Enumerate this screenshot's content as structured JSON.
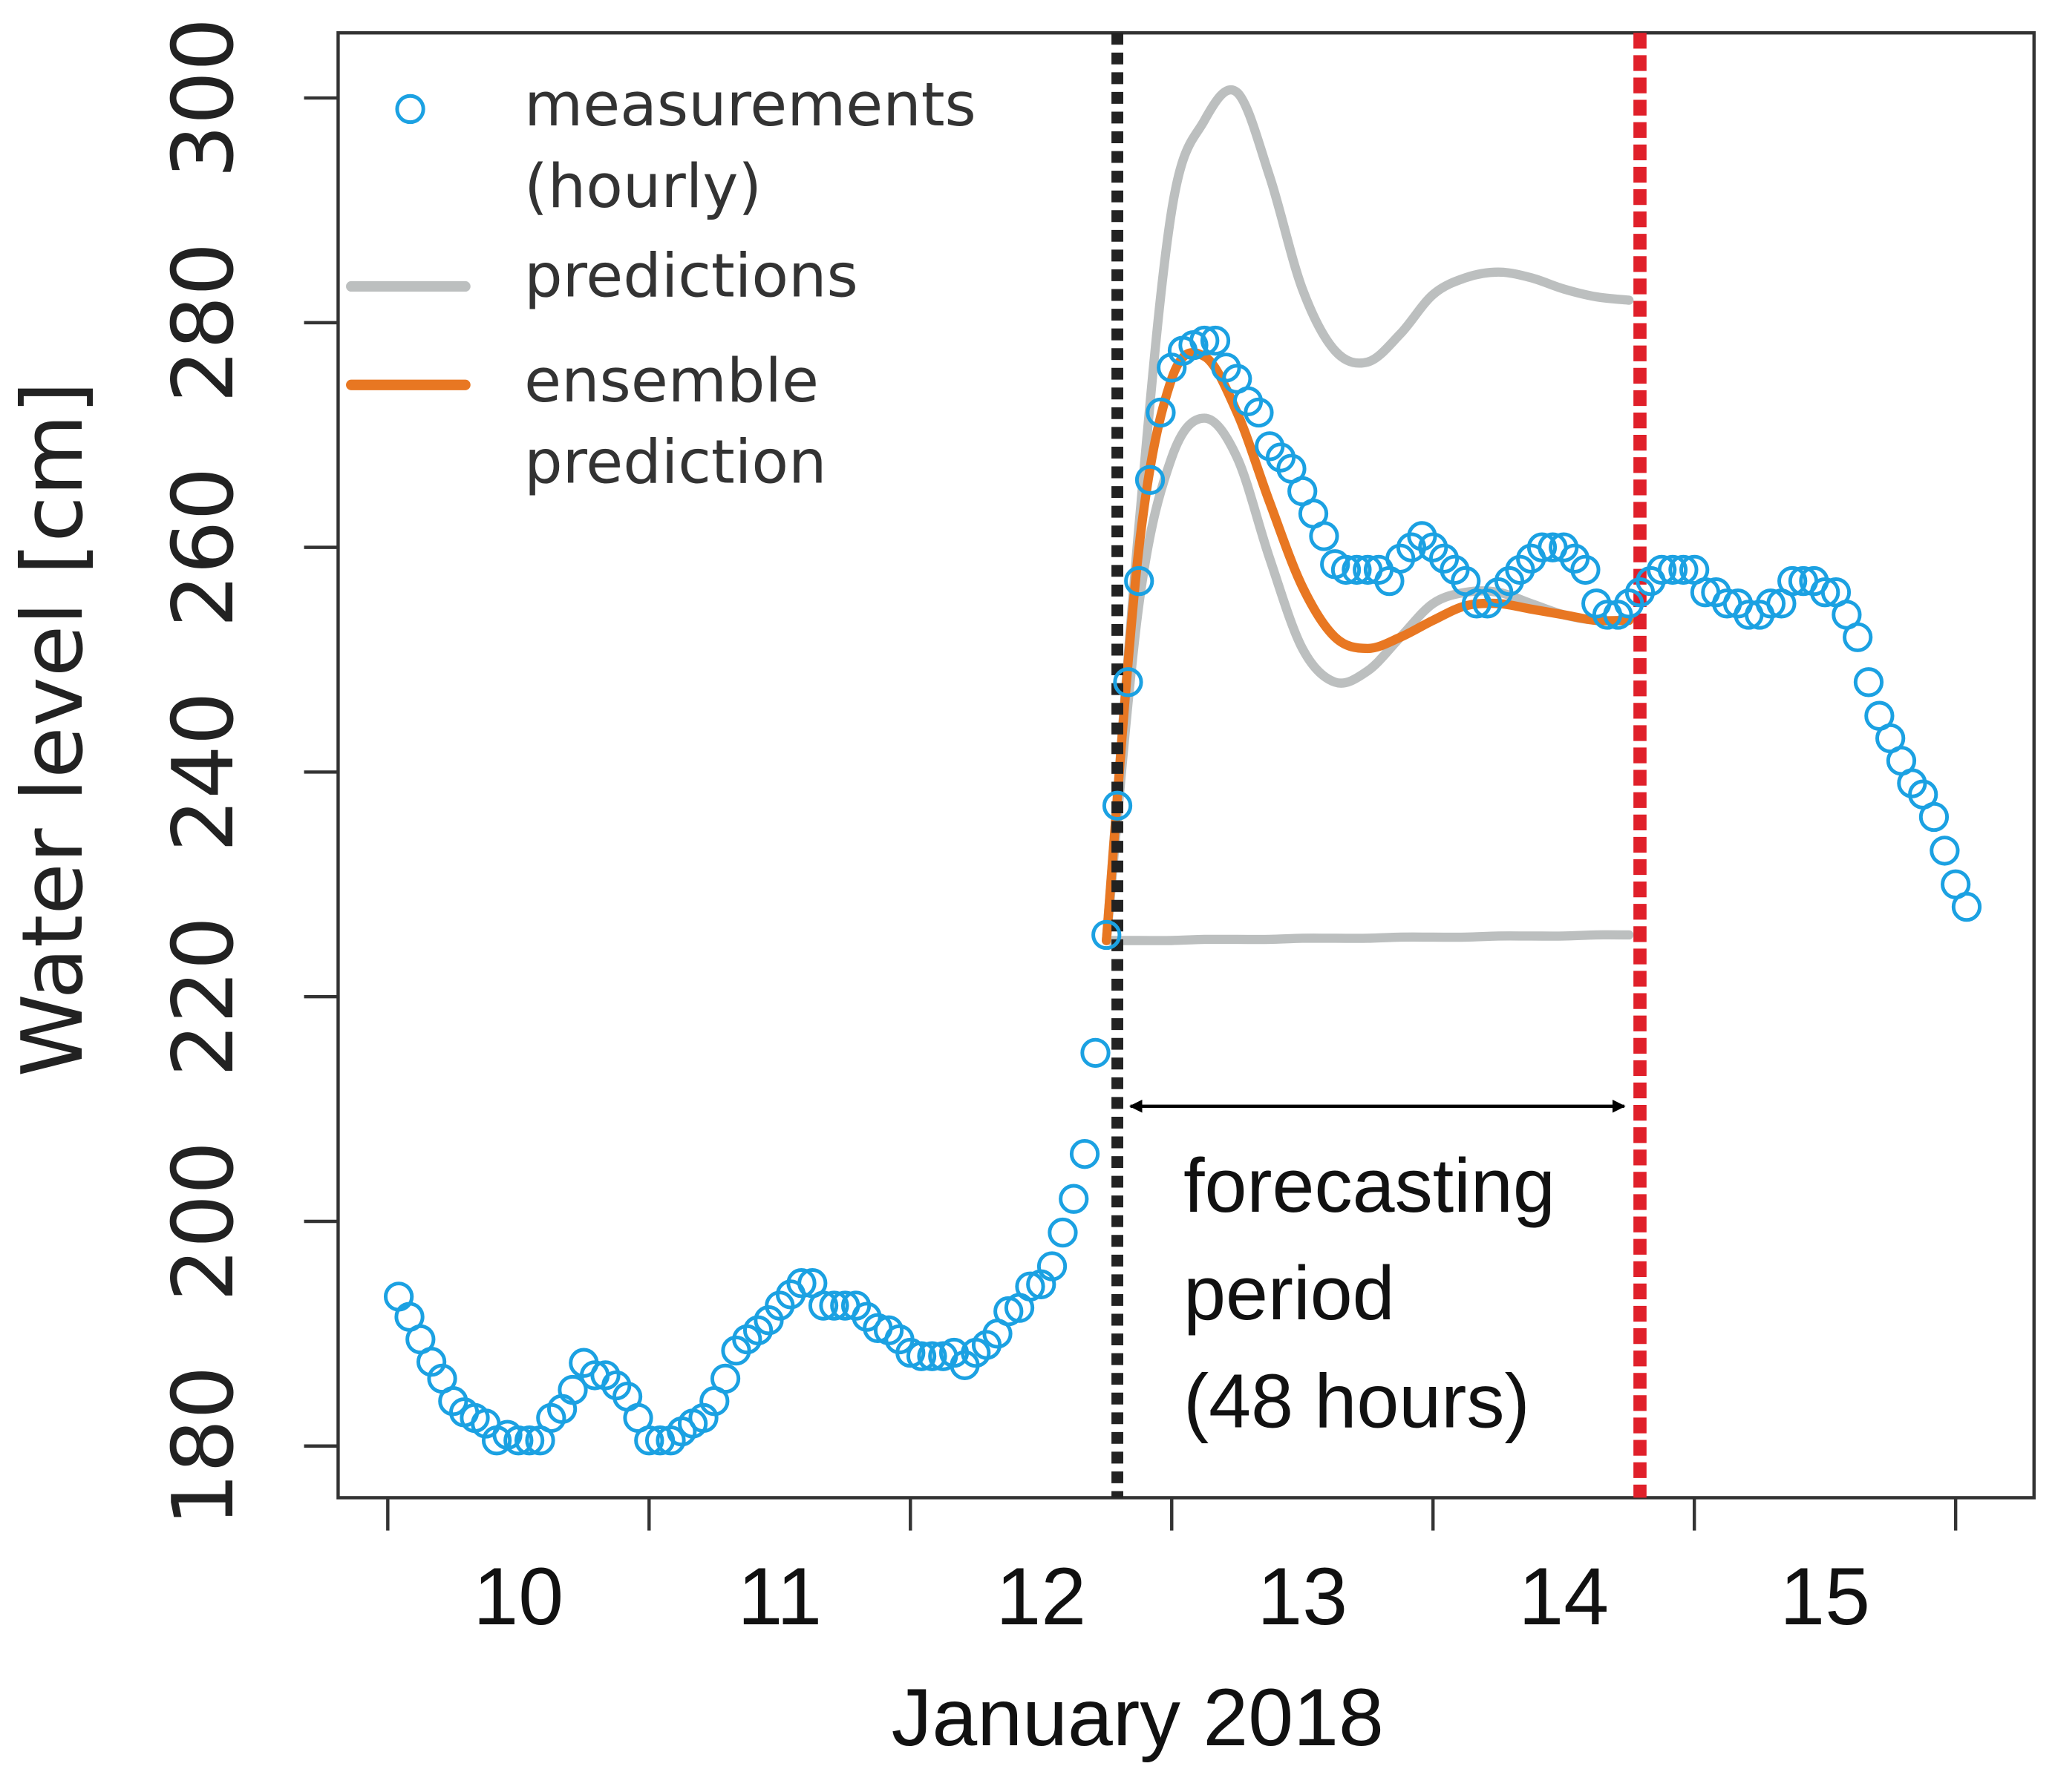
{
  "chart_data": {
    "type": "scatter",
    "xlabel": "January 2018",
    "ylabel": "Water level [cm]",
    "xlim": [
      9.81,
      16.3
    ],
    "ylim": [
      175.4,
      305.8
    ],
    "xticks": [
      10,
      11,
      12,
      13,
      14,
      15,
      16
    ],
    "xtick_labels": [
      {
        "value": 10.5,
        "label": "10"
      },
      {
        "value": 11.5,
        "label": "11"
      },
      {
        "value": 12.5,
        "label": "12"
      },
      {
        "value": 13.5,
        "label": "13"
      },
      {
        "value": 14.5,
        "label": "14"
      },
      {
        "value": 15.5,
        "label": "15"
      }
    ],
    "yticks": [
      180,
      200,
      220,
      240,
      260,
      280,
      300
    ],
    "legend": "top-left",
    "forecast_start": {
      "x": 12.792,
      "color": "#222222"
    },
    "forecast_end": {
      "x": 14.792,
      "color": "#e0202a"
    },
    "annotation": [
      "forecasting",
      "period",
      "(48 hours)"
    ],
    "series": [
      {
        "name": "measurements (hourly)",
        "color": "#1ba1e2",
        "x": [
          10.042,
          10.083,
          10.125,
          10.167,
          10.208,
          10.25,
          10.292,
          10.333,
          10.375,
          10.417,
          10.458,
          10.5,
          10.542,
          10.583,
          10.625,
          10.667,
          10.708,
          10.75,
          10.792,
          10.833,
          10.875,
          10.917,
          10.958,
          11,
          11.042,
          11.083,
          11.125,
          11.167,
          11.208,
          11.25,
          11.292,
          11.333,
          11.375,
          11.417,
          11.458,
          11.5,
          11.542,
          11.583,
          11.625,
          11.667,
          11.708,
          11.75,
          11.792,
          11.833,
          11.875,
          11.917,
          11.958,
          12,
          12.042,
          12.083,
          12.125,
          12.167,
          12.208,
          12.25,
          12.292,
          12.333,
          12.375,
          12.417,
          12.458,
          12.5,
          12.542,
          12.583,
          12.625,
          12.667,
          12.708,
          12.75,
          12.792,
          12.833,
          12.875,
          12.917,
          12.958,
          13,
          13.042,
          13.083,
          13.125,
          13.167,
          13.208,
          13.25,
          13.292,
          13.333,
          13.375,
          13.417,
          13.458,
          13.5,
          13.542,
          13.583,
          13.625,
          13.667,
          13.708,
          13.75,
          13.792,
          13.833,
          13.875,
          13.917,
          13.958,
          14,
          14.042,
          14.083,
          14.125,
          14.167,
          14.208,
          14.25,
          14.292,
          14.333,
          14.375,
          14.417,
          14.458,
          14.5,
          14.542,
          14.583,
          14.625,
          14.667,
          14.708,
          14.75,
          14.792,
          14.833,
          14.875,
          14.917,
          14.958,
          15,
          15.042,
          15.083,
          15.125,
          15.167,
          15.208,
          15.25,
          15.292,
          15.333,
          15.375,
          15.417,
          15.458,
          15.5,
          15.542,
          15.583,
          15.625,
          15.667,
          15.708,
          15.75,
          15.792,
          15.833,
          15.875,
          15.917,
          15.958,
          16,
          16.042
        ],
        "values": [
          193.3,
          191.5,
          189.5,
          187.5,
          186,
          184,
          183,
          182.5,
          182,
          180.5,
          181,
          180.5,
          180.5,
          180.5,
          182.5,
          183.3,
          185,
          187.4,
          186.3,
          186.3,
          185.4,
          184.4,
          182.5,
          180.5,
          180.5,
          180.5,
          181.3,
          182,
          182.5,
          184,
          186,
          188.5,
          189.5,
          190.3,
          191.2,
          192.5,
          193.5,
          194.5,
          194.5,
          192.5,
          192.5,
          192.5,
          192.5,
          191.5,
          190.5,
          190.3,
          189.5,
          188.3,
          188,
          188,
          188,
          188.3,
          187.2,
          188.3,
          189,
          190,
          192,
          192.3,
          194.2,
          194.4,
          196,
          199,
          202,
          206,
          215,
          225.5,
          237,
          248,
          257,
          266,
          272,
          276,
          277.5,
          278,
          278.4,
          278.4,
          276,
          275,
          273,
          272,
          269,
          268,
          267,
          265,
          263,
          261,
          258.5,
          258,
          258,
          258,
          258,
          257,
          259,
          260,
          261,
          260,
          259,
          258,
          257,
          255,
          255,
          256,
          257,
          258,
          259,
          260,
          260,
          260,
          259,
          258,
          255,
          254,
          254,
          255,
          256,
          257,
          258,
          258,
          258,
          258,
          256,
          256,
          255,
          255,
          254,
          254,
          255,
          255,
          257,
          257,
          257,
          256,
          256,
          254,
          252,
          248,
          245,
          243,
          241,
          239,
          238,
          236,
          233,
          230,
          228
        ]
      },
      {
        "name": "predictions",
        "color": "#bcbfbf",
        "x": [
          12.75,
          12.875,
          13,
          13.125,
          13.25,
          13.375,
          13.5,
          13.625,
          13.75,
          13.875,
          14,
          14.125,
          14.25,
          14.375,
          14.5,
          14.625,
          14.75
        ],
        "lines": [
          [
            225,
            262,
            290,
            298,
            300.5,
            293,
            283,
            277.5,
            276.5,
            279,
            282.5,
            284,
            284.5,
            284,
            283,
            282.3,
            282
          ],
          [
            225,
            255,
            268,
            271.5,
            268,
            259,
            251,
            248,
            249,
            252,
            255,
            256,
            256,
            255,
            254,
            253.5,
            253.5
          ],
          [
            225,
            225,
            225,
            225.1,
            225.1,
            225.1,
            225.2,
            225.2,
            225.2,
            225.3,
            225.3,
            225.3,
            225.4,
            225.4,
            225.4,
            225.5,
            225.5
          ]
        ]
      },
      {
        "name": "ensemble prediction",
        "color": "#e87722",
        "x": [
          12.75,
          12.875,
          13,
          13.125,
          13.25,
          13.375,
          13.5,
          13.625,
          13.75,
          13.875,
          14,
          14.125,
          14.25,
          14.375,
          14.5,
          14.625,
          14.75
        ],
        "values": [
          225,
          260,
          275,
          277,
          272,
          264,
          256.5,
          252,
          251,
          252,
          253.5,
          254.8,
          255,
          254.5,
          254,
          253.5,
          253.5
        ]
      }
    ]
  }
}
